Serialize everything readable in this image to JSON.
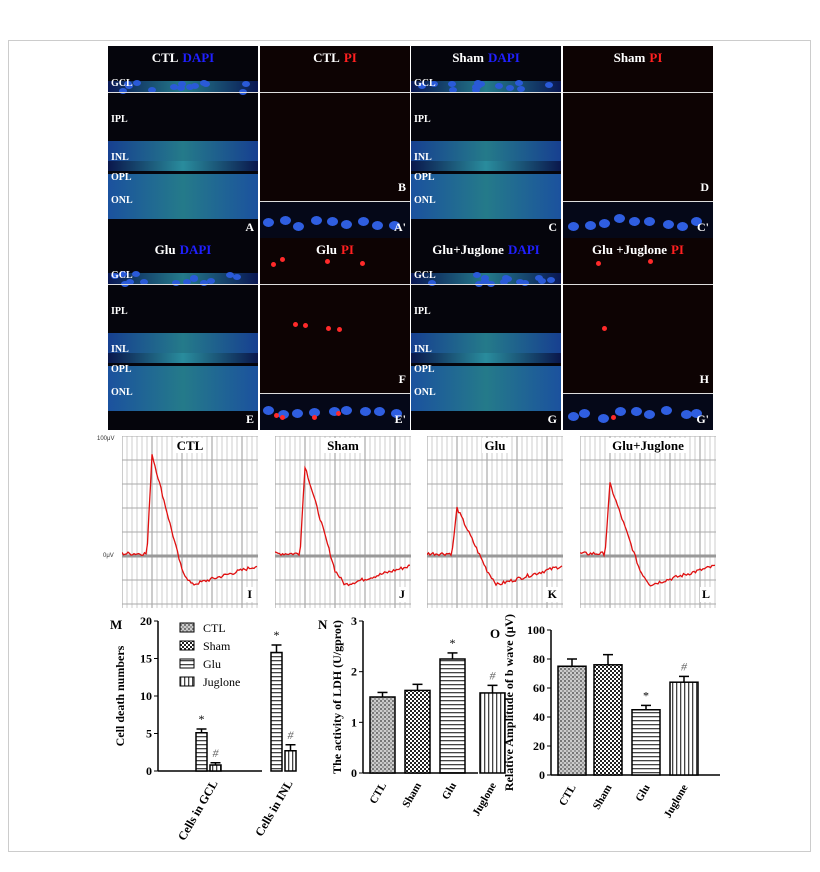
{
  "microscopy": [
    {
      "id": "A",
      "title": "CTL",
      "stain": "DAPI",
      "stain_color": "#2020ff",
      "layers": [
        "GCL",
        "IPL",
        "INL",
        "OPL",
        "ONL"
      ],
      "letters": [
        "A"
      ],
      "type": "dapi"
    },
    {
      "id": "B",
      "title": "CTL",
      "stain": "PI",
      "stain_color": "#ff2020",
      "layers": [],
      "letters": [
        "B",
        "A'"
      ],
      "type": "pi",
      "pi_cells": 0
    },
    {
      "id": "C",
      "title": "Sham",
      "stain": "DAPI",
      "stain_color": "#2020ff",
      "layers": [
        "GCL",
        "IPL",
        "INL",
        "OPL",
        "ONL"
      ],
      "letters": [
        "C"
      ],
      "type": "dapi"
    },
    {
      "id": "D",
      "title": "Sham",
      "stain": "PI",
      "stain_color": "#ff2020",
      "layers": [],
      "letters": [
        "D",
        "C'"
      ],
      "type": "pi",
      "pi_cells": 0
    },
    {
      "id": "E",
      "title": "Glu",
      "stain": "DAPI",
      "stain_color": "#2020ff",
      "layers": [
        "GCL",
        "IPL",
        "INL",
        "OPL",
        "ONL"
      ],
      "letters": [
        "E"
      ],
      "type": "dapi"
    },
    {
      "id": "F",
      "title": "Glu",
      "stain": "PI",
      "stain_color": "#ff2020",
      "layers": [],
      "letters": [
        "F",
        "E'"
      ],
      "type": "pi",
      "pi_cells": 12
    },
    {
      "id": "G",
      "title": "Glu+Juglone",
      "stain": "DAPI",
      "stain_color": "#2020ff",
      "layers": [
        "GCL",
        "IPL",
        "INL",
        "OPL",
        "ONL"
      ],
      "letters": [
        "G"
      ],
      "type": "dapi"
    },
    {
      "id": "H",
      "title": "Glu +Juglone",
      "stain": "PI",
      "stain_color": "#ff2020",
      "layers": [],
      "letters": [
        "H",
        "G'"
      ],
      "type": "pi",
      "pi_cells": 4
    }
  ],
  "erg": {
    "unit_top": "100μV",
    "unit_zero": "0μV",
    "panels": [
      {
        "title": "CTL",
        "letter": "I",
        "peak": 85
      },
      {
        "title": "Sham",
        "letter": "J",
        "peak": 75
      },
      {
        "title": "Glu",
        "letter": "K",
        "peak": 40
      },
      {
        "title": "Glu+Juglone",
        "letter": "L",
        "peak": 60
      }
    ]
  },
  "chart_data": [
    {
      "panel": "M",
      "type": "bar",
      "ylabel": "Cell death numbers",
      "ylim": [
        0,
        20
      ],
      "yticks": [
        0,
        5,
        10,
        15,
        20
      ],
      "categories": [
        "Cells in GCL",
        "Cells in INL"
      ],
      "legend": [
        "CTL",
        "Sham",
        "Glu",
        "Juglone"
      ],
      "legend_position": "top",
      "series": [
        {
          "name": "CTL",
          "values": [
            0,
            0
          ],
          "err": [
            0,
            0
          ]
        },
        {
          "name": "Sham",
          "values": [
            0,
            0
          ],
          "err": [
            0,
            0
          ]
        },
        {
          "name": "Glu",
          "values": [
            5.1,
            15.8
          ],
          "err": [
            0.5,
            1.0
          ],
          "marks": [
            "*",
            "*"
          ]
        },
        {
          "name": "Juglone",
          "values": [
            0.8,
            2.7
          ],
          "err": [
            0.3,
            0.8
          ],
          "marks": [
            "#",
            "#"
          ]
        }
      ]
    },
    {
      "panel": "N",
      "type": "bar",
      "ylabel": "The activity of LDH (U/gprot)",
      "ylim": [
        0,
        3
      ],
      "yticks": [
        0,
        1,
        2,
        3
      ],
      "categories": [
        "CTL",
        "Sham",
        "Glu",
        "Juglone"
      ],
      "values": [
        1.5,
        1.63,
        2.25,
        1.58
      ],
      "err": [
        0.09,
        0.12,
        0.12,
        0.15
      ],
      "marks": [
        "",
        "",
        "*",
        "#"
      ]
    },
    {
      "panel": "O",
      "type": "bar",
      "ylabel": "Relative Amplitude of b wave (μV)",
      "ylim": [
        0,
        100
      ],
      "yticks": [
        0,
        20,
        40,
        60,
        80,
        100
      ],
      "categories": [
        "CTL",
        "Sham",
        "Glu",
        "Juglone"
      ],
      "values": [
        75,
        76,
        45,
        64
      ],
      "err": [
        5,
        7,
        3,
        4
      ],
      "marks": [
        "",
        "",
        "*",
        "#"
      ]
    }
  ]
}
